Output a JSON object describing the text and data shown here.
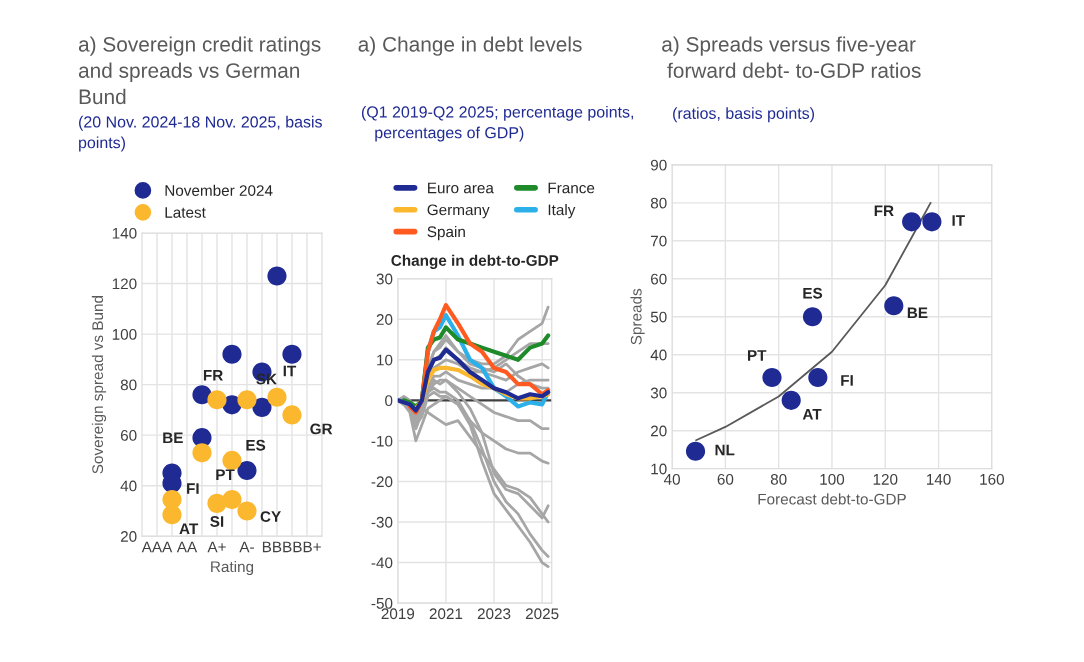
{
  "chart_data": [
    {
      "type": "scatter",
      "title": "a) Sovereign credit ratings\nand spreads vs German\nBund",
      "subtitle": "(20 Nov. 2024-18 Nov. 2025, basis\npoints)",
      "xlabel": "Rating",
      "ylabel": "Sovereign spread vs Bund",
      "categories": [
        "AAA",
        null,
        "AA",
        null,
        "A+",
        null,
        "A-",
        null,
        "BBB",
        null,
        "BB+"
      ],
      "ylim": [
        20,
        140
      ],
      "yticks": [
        20,
        40,
        60,
        80,
        100,
        120,
        140
      ],
      "grid": true,
      "legend": "top left",
      "marker": "circle",
      "series": [
        {
          "name": "November 2024",
          "color": "#1f2a93",
          "values": [
            null,
            45,
            null,
            59,
            null,
            92,
            null,
            85,
            123,
            92,
            null
          ],
          "value_labels": [
            null,
            null,
            null,
            "BE",
            null,
            null,
            null,
            null,
            null,
            null,
            null
          ]
        },
        {
          "color": "#1f2a93",
          "values": [
            null,
            41,
            null,
            76,
            null,
            72,
            46,
            71,
            null,
            null,
            null
          ],
          "value_labels": [
            null,
            null,
            null,
            "FR",
            null,
            null,
            null,
            null,
            null,
            null,
            null
          ]
        },
        {
          "name": "Latest",
          "color": "#fbb82e",
          "values": [
            null,
            34.5,
            null,
            53,
            74,
            null,
            30,
            null,
            75,
            68,
            null
          ],
          "value_labels": [
            null,
            "FI",
            null,
            null,
            null,
            null,
            "CY",
            null,
            "IT",
            "GR",
            null
          ]
        },
        {
          "color": "#fbb82e",
          "values": [
            null,
            28.5,
            null,
            null,
            33,
            50,
            74,
            null,
            null,
            null,
            null
          ],
          "value_labels": [
            null,
            "AT",
            null,
            null,
            "SI",
            "ES",
            "SK",
            null,
            null,
            null,
            null
          ]
        },
        {
          "color": "#fbb82e",
          "values": [
            null,
            null,
            null,
            null,
            null,
            34.5,
            null,
            null,
            null,
            null,
            null
          ],
          "value_labels": [
            null,
            null,
            null,
            null,
            null,
            "PT",
            null,
            null,
            null,
            null,
            null
          ]
        }
      ]
    },
    {
      "type": "line",
      "title": "a) Change in debt levels",
      "subtitle": "(Q1 2019-Q2 2025; percentage points,\n   percentages of GDP)",
      "x": [
        2019,
        2019.25,
        2019.5,
        2019.75,
        2020,
        2020.25,
        2020.5,
        2020.75,
        2021,
        2021.5,
        2022,
        2022.5,
        2023,
        2023.5,
        2024,
        2024.5,
        2025,
        2025.25
      ],
      "xlim": [
        2019,
        2025.4
      ],
      "xticks": [
        2019,
        2021,
        2023,
        2025
      ],
      "ylim": [
        -50,
        30
      ],
      "yticks": [
        -50,
        -40,
        -30,
        -20,
        -10,
        0,
        10,
        20,
        30
      ],
      "grid": true,
      "legend": "top",
      "marker": "none",
      "ref_lines": [
        {
          "axis": "y",
          "value": 0,
          "color": "#404040"
        }
      ],
      "annotations": [
        "Change in debt-to-GDP"
      ],
      "series": [
        {
          "color": "#a6a6a6",
          "values": [
            0,
            1,
            0,
            -3,
            0,
            8,
            12,
            14,
            16,
            12,
            10,
            9,
            9,
            11,
            15,
            17,
            19,
            23
          ]
        },
        {
          "color": "#a6a6a6",
          "values": [
            0,
            0.5,
            -1,
            -4,
            -1,
            6,
            10,
            11,
            13,
            10,
            8,
            7,
            8,
            10,
            12,
            14,
            14,
            14
          ]
        },
        {
          "color": "#a6a6a6",
          "values": [
            0,
            0,
            -1,
            -5,
            -2,
            5,
            8,
            9,
            10,
            9,
            7,
            7,
            6,
            5,
            7,
            8,
            9,
            8
          ]
        },
        {
          "color": "#a6a6a6",
          "values": [
            0,
            -0.5,
            -2,
            -6,
            -3,
            3,
            6,
            6,
            7,
            5,
            4,
            3,
            3,
            2,
            4,
            5,
            5,
            5
          ]
        },
        {
          "color": "#a6a6a6",
          "values": [
            0,
            -1,
            -2,
            -7,
            -3,
            2,
            4,
            5,
            5,
            3,
            1,
            -1,
            -3,
            -4,
            -5,
            -5,
            -7,
            -7
          ]
        },
        {
          "color": "#a6a6a6",
          "values": [
            0,
            -1,
            -3,
            -10,
            -6,
            -2,
            -1,
            0,
            1,
            -1,
            -5,
            -8,
            -10,
            -12,
            -13,
            -13,
            -15,
            -15.5
          ]
        },
        {
          "color": "#a6a6a6",
          "values": [
            0,
            -1,
            -2,
            -4,
            -2,
            -3,
            -4,
            -5,
            -6,
            -5,
            -9,
            -13,
            -17,
            -21,
            -22,
            -24,
            -28,
            -30
          ]
        },
        {
          "color": "#a6a6a6",
          "values": [
            0,
            -1,
            -2,
            -5,
            -3,
            3,
            5,
            4,
            5,
            2,
            -2,
            -8,
            -18,
            -22,
            -23,
            -26,
            -29,
            -26
          ]
        },
        {
          "color": "#a6a6a6",
          "values": [
            0,
            -1,
            -2,
            -6,
            -3,
            2,
            3,
            2,
            2,
            0,
            -5,
            -12,
            -20,
            -25,
            -28,
            -33,
            -37,
            -38.5
          ]
        },
        {
          "color": "#a6a6a6",
          "values": [
            0,
            -1,
            -2,
            -6,
            -4,
            1,
            2,
            1,
            1,
            -1,
            -6,
            -15,
            -23,
            -27,
            -31,
            -35,
            -40,
            -41
          ]
        },
        {
          "color": "#a6a6a6",
          "values": [
            0,
            0,
            -1,
            -3,
            -1,
            8,
            12,
            13,
            15,
            12,
            9,
            8,
            7,
            9,
            6,
            4,
            3,
            3
          ]
        },
        {
          "name": "Euro area",
          "color": "#1f2a93",
          "values": [
            0,
            -0.5,
            -1,
            -2.5,
            0,
            7,
            10,
            10.5,
            12.5,
            10,
            7,
            5,
            3,
            2,
            0.5,
            1.5,
            1,
            2
          ]
        },
        {
          "name": "Germany",
          "color": "#fbb82e",
          "values": [
            null,
            null,
            null,
            -2,
            0,
            5,
            7.5,
            8,
            8,
            7.5,
            6,
            4,
            3,
            1.5,
            0.5,
            0.5,
            1,
            1.5
          ]
        },
        {
          "name": "Spain",
          "color": "#ff5a1f",
          "values": [
            null,
            null,
            -1.5,
            -3,
            0,
            12,
            17,
            20,
            23.5,
            19,
            14,
            12,
            8,
            7,
            4,
            4,
            1.5,
            2.5
          ]
        },
        {
          "name": "France",
          "color": "#1e8a2a",
          "values": [
            null,
            0,
            -0.5,
            -1.5,
            0,
            13,
            15,
            15.5,
            18,
            15,
            14,
            13,
            12,
            11,
            10,
            13,
            14,
            16
          ]
        },
        {
          "name": "Italy",
          "color": "#2bb0ea",
          "values": [
            null,
            null,
            null,
            null,
            0,
            12,
            17,
            18,
            21,
            16,
            10,
            8,
            3,
            1,
            -1.5,
            -0.5,
            -1,
            2
          ]
        }
      ]
    },
    {
      "type": "scatter",
      "title": "a) Spreads versus five-year\n forward debt- to-GDP ratios",
      "subtitle": "(ratios, basis points)",
      "xlabel": "Forecast debt-to-GDP",
      "ylabel": "Spreads",
      "xlim": [
        40,
        160
      ],
      "xticks": [
        40,
        60,
        80,
        100,
        120,
        140,
        160
      ],
      "ylim": [
        10,
        90
      ],
      "yticks": [
        10,
        20,
        30,
        40,
        50,
        60,
        70,
        80,
        90
      ],
      "grid": true,
      "series": [
        {
          "type": "line",
          "color": "#595959",
          "marker": "none",
          "x": [
            49,
            60,
            80,
            100,
            120,
            130,
            137
          ],
          "values": [
            17.5,
            21,
            29,
            40.8,
            58.3,
            71,
            80
          ]
        },
        {
          "type": "scatter",
          "color": "#1f2a93",
          "marker": "circle",
          "x": [
            48.8,
            77.5,
            84.7,
            92.7,
            94.7,
            123.2,
            129.9,
            137.5
          ],
          "values": [
            14.6,
            34,
            28,
            50,
            34,
            52.9,
            75,
            75
          ],
          "value_labels": [
            "NL",
            "PT",
            "AT",
            "ES",
            "FI",
            "BE",
            "FR",
            "IT"
          ]
        }
      ]
    }
  ]
}
